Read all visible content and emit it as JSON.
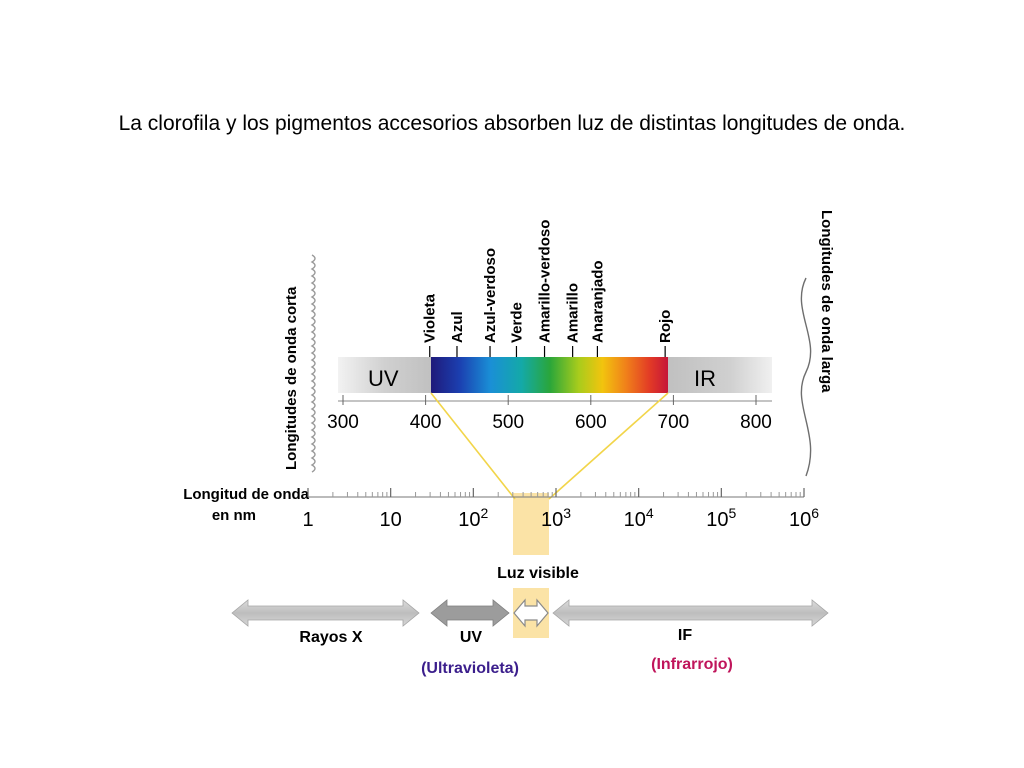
{
  "title": "La clorofila y los pigmentos accesorios absorben luz de distintas longitudes de onda.",
  "colors": {
    "grey_bar": "#c8c8c8",
    "visible_highlight": "#fbe3a6",
    "connector_lines": "#f2d54a",
    "uv_purple": "#3b1e8c",
    "ir_magenta": "#c0155b"
  },
  "spectrum": {
    "left_label": "Longitudes de onda corta",
    "right_label": "Longitudes de onda larga",
    "uv_label": "UV",
    "ir_label": "IR",
    "colors": [
      {
        "name": "Violeta",
        "nm": 405
      },
      {
        "name": "Azul",
        "nm": 438
      },
      {
        "name": "Azul-verdoso",
        "nm": 478
      },
      {
        "name": "Verde",
        "nm": 510
      },
      {
        "name": "Amarillo-verdoso",
        "nm": 544
      },
      {
        "name": "Amarillo",
        "nm": 578
      },
      {
        "name": "Anaranjado",
        "nm": 608
      },
      {
        "name": "Rojo",
        "nm": 690
      }
    ],
    "nm_ticks": [
      "300",
      "400",
      "500",
      "600",
      "700",
      "800"
    ]
  },
  "scale": {
    "label_line1": "Longitud de onda",
    "label_line2": "en nm",
    "ticks": [
      {
        "base": "1",
        "exp": ""
      },
      {
        "base": "10",
        "exp": ""
      },
      {
        "base": "10",
        "exp": "2"
      },
      {
        "base": "10",
        "exp": "3"
      },
      {
        "base": "10",
        "exp": "4"
      },
      {
        "base": "10",
        "exp": "5"
      },
      {
        "base": "10",
        "exp": "6"
      }
    ]
  },
  "regions": {
    "visible_label": "Luz visible",
    "xray_label": "Rayos X",
    "uv_label": "UV",
    "uv_sub": "(Ultravioleta)",
    "if_label": "IF",
    "if_sub": "(Infrarrojo)"
  }
}
